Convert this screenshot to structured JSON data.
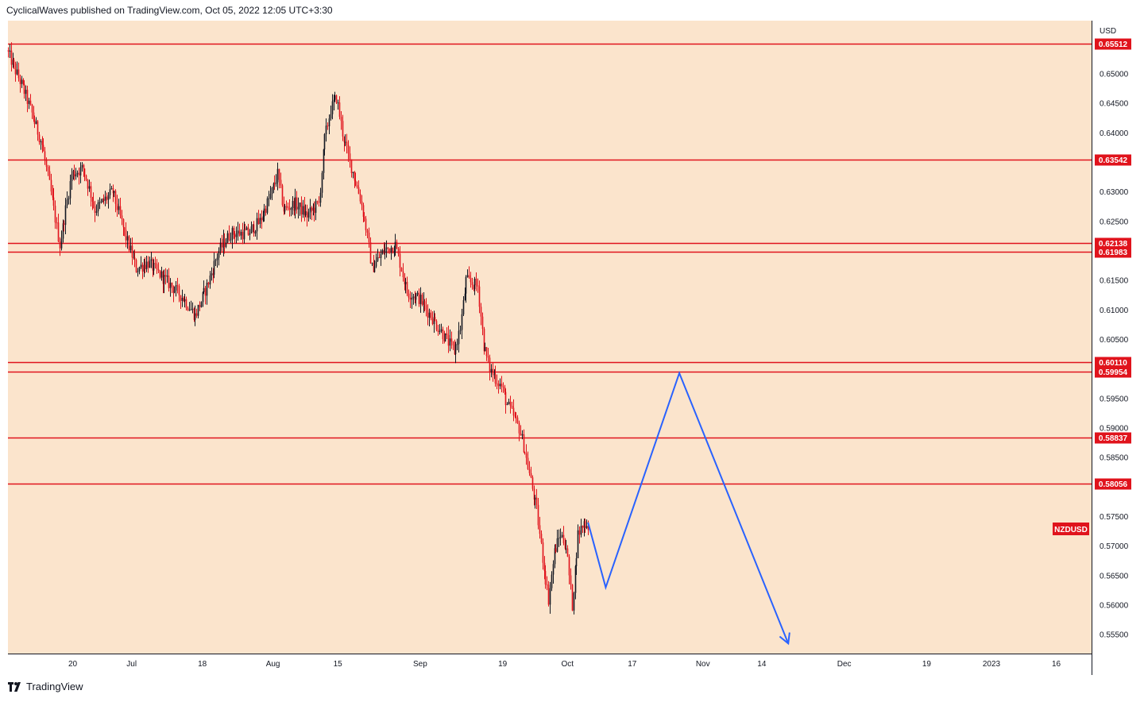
{
  "header": {
    "publisher_line": "CyclicalWaves published on TradingView.com, Oct 05, 2022 12:05 UTC+3:30"
  },
  "footer": {
    "brand": "TradingView"
  },
  "colors": {
    "plot_bg": "#fbe4cc",
    "up_candle": "#131722",
    "down_candle": "#e0131c",
    "level_line": "#e0131c",
    "projection": "#2962ff",
    "badge_bg": "#e0131c"
  },
  "chart_data": {
    "type": "candlestick",
    "symbol": "NZDUSD",
    "currency": "USD",
    "y_axis": {
      "unit_label": "USD",
      "ylim": [
        0.5518,
        0.659
      ],
      "ticks": [
        "0.65000",
        "0.64500",
        "0.64000",
        "0.63000",
        "0.62500",
        "0.61500",
        "0.61000",
        "0.60500",
        "0.59500",
        "0.59000",
        "0.58500",
        "0.57500",
        "0.57000",
        "0.56500",
        "0.56000",
        "0.55500"
      ]
    },
    "x_axis": {
      "range_days": [
        0,
        184
      ],
      "ticks": [
        {
          "label": "20",
          "day": 11
        },
        {
          "label": "Jul",
          "day": 21
        },
        {
          "label": "18",
          "day": 33
        },
        {
          "label": "Aug",
          "day": 45
        },
        {
          "label": "15",
          "day": 56
        },
        {
          "label": "Sep",
          "day": 70
        },
        {
          "label": "19",
          "day": 84
        },
        {
          "label": "Oct",
          "day": 95
        },
        {
          "label": "17",
          "day": 106
        },
        {
          "label": "Nov",
          "day": 118
        },
        {
          "label": "14",
          "day": 128
        },
        {
          "label": "Dec",
          "day": 142
        },
        {
          "label": "19",
          "day": 156
        },
        {
          "label": "2023",
          "day": 167
        },
        {
          "label": "16",
          "day": 178
        }
      ]
    },
    "levels": [
      "0.65512",
      "0.63542",
      "0.62138",
      "0.61983",
      "0.60110",
      "0.59954",
      "0.58837",
      "0.58056"
    ],
    "last_price_tag": "NZDUSD",
    "price_path": [
      [
        0,
        0.654
      ],
      [
        3,
        0.647
      ],
      [
        6,
        0.638
      ],
      [
        8,
        0.627
      ],
      [
        9,
        0.621
      ],
      [
        11,
        0.633
      ],
      [
        13,
        0.634
      ],
      [
        15,
        0.627
      ],
      [
        18,
        0.63
      ],
      [
        20,
        0.623
      ],
      [
        22,
        0.617
      ],
      [
        24,
        0.618
      ],
      [
        27,
        0.615
      ],
      [
        30,
        0.612
      ],
      [
        32,
        0.609
      ],
      [
        34,
        0.614
      ],
      [
        36,
        0.62
      ],
      [
        38,
        0.623
      ],
      [
        41,
        0.623
      ],
      [
        43,
        0.625
      ],
      [
        45,
        0.63
      ],
      [
        46,
        0.633
      ],
      [
        47,
        0.627
      ],
      [
        49,
        0.628
      ],
      [
        51,
        0.626
      ],
      [
        53,
        0.628
      ],
      [
        54,
        0.639
      ],
      [
        55,
        0.644
      ],
      [
        56,
        0.646
      ],
      [
        57,
        0.64
      ],
      [
        58,
        0.636
      ],
      [
        60,
        0.629
      ],
      [
        61,
        0.624
      ],
      [
        62,
        0.617
      ],
      [
        64,
        0.62
      ],
      [
        66,
        0.621
      ],
      [
        67,
        0.617
      ],
      [
        68,
        0.613
      ],
      [
        70,
        0.612
      ],
      [
        72,
        0.609
      ],
      [
        74,
        0.606
      ],
      [
        76,
        0.603
      ],
      [
        77,
        0.607
      ],
      [
        78,
        0.615
      ],
      [
        80,
        0.614
      ],
      [
        81,
        0.604
      ],
      [
        82,
        0.6
      ],
      [
        84,
        0.597
      ],
      [
        85,
        0.594
      ],
      [
        87,
        0.59
      ],
      [
        88,
        0.586
      ],
      [
        89,
        0.581
      ],
      [
        90,
        0.576
      ],
      [
        91,
        0.568
      ],
      [
        92,
        0.561
      ],
      [
        93,
        0.569
      ],
      [
        94,
        0.572
      ],
      [
        95,
        0.57
      ],
      [
        96,
        0.56
      ],
      [
        97,
        0.572
      ],
      [
        98,
        0.574
      ],
      [
        98.5,
        0.5735
      ]
    ],
    "projection_path": [
      [
        98.5,
        0.574
      ],
      [
        101.5,
        0.563
      ],
      [
        114,
        0.5993
      ],
      [
        132.5,
        0.5535
      ]
    ]
  }
}
